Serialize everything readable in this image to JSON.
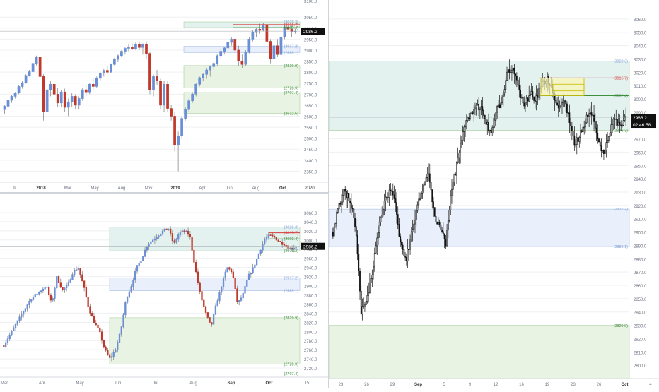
{
  "colors": {
    "up": "#6a8fd6",
    "down": "#c0392b",
    "candle_dark": "#111111",
    "zone_green": "#e8f3e4",
    "zone_green_border": "#a9cf9c",
    "zone_blue": "#e9f0fb",
    "zone_blue_border": "#a7bde6",
    "zone_teal": "#e3f1ef",
    "zone_yellow": "#fbf7b3",
    "zone_yellow_border": "#c9b800",
    "red_line": "#d63b3b",
    "green_line": "#3e8e3e",
    "grid": "#eef0f3",
    "axis_text": "#6b7280"
  },
  "price_tag": "2986.2",
  "countdown": "02:46:58",
  "chart_data": [
    {
      "type": "candlestick",
      "panel": "top-left",
      "timeframe": "weekly",
      "ylim": [
        2300,
        3070
      ],
      "x_tick_labels": [
        "9",
        "2018",
        "Mar",
        "May",
        "Aug",
        "Nov",
        "2019",
        "Apr",
        "Jun",
        "Aug",
        "Oct",
        "2020"
      ],
      "y_tick_labels": [
        "3050.0",
        "3000.0",
        "2950.0",
        "2900.0",
        "2850.0",
        "2800.0",
        "2750.0",
        "2700.0",
        "2650.0",
        "2600.0",
        "2550.0",
        "2500.0",
        "2450.0",
        "2400.0",
        "2350.0"
      ],
      "y_ticks": [
        3050,
        3000,
        2950,
        2900,
        2850,
        2800,
        2750,
        2700,
        2650,
        2600,
        2550,
        2500,
        2450,
        2400,
        2350
      ],
      "extra_top_tick": "3100.0",
      "level_labels": [
        {
          "label": "3028.3)",
          "value": 3028.3,
          "color": "blue"
        },
        {
          "label": "3015.7)",
          "value": 3015.7,
          "color": "red"
        },
        {
          "label": "3002.4)",
          "value": 3002.4,
          "color": "green"
        },
        {
          "label": "2917.2)",
          "value": 2917.2,
          "color": "blue"
        },
        {
          "label": "2889.1)",
          "value": 2889.1,
          "color": "blue"
        },
        {
          "label": "2829.9)",
          "value": 2829.9,
          "color": "green"
        },
        {
          "label": "2728.9)",
          "value": 2728.9,
          "color": "green"
        },
        {
          "label": "2707.4)",
          "value": 2707.4,
          "color": "green"
        },
        {
          "label": "2612.5)",
          "value": 2612.5,
          "color": "green"
        }
      ],
      "zones": [
        {
          "from": 3002.4,
          "to": 3028.3,
          "kind": "teal"
        },
        {
          "from": 2889.1,
          "to": 2917.2,
          "kind": "blue"
        },
        {
          "from": 2728.9,
          "to": 2829.9,
          "kind": "green"
        },
        {
          "from": 2612.5,
          "to": 2707.4,
          "kind": "green"
        }
      ],
      "series": [
        {
          "o": 2630,
          "h": 2650,
          "l": 2610,
          "c": 2645
        },
        {
          "o": 2645,
          "h": 2680,
          "l": 2640,
          "c": 2672
        },
        {
          "o": 2672,
          "h": 2695,
          "l": 2660,
          "c": 2690
        },
        {
          "o": 2690,
          "h": 2710,
          "l": 2680,
          "c": 2705
        },
        {
          "o": 2705,
          "h": 2740,
          "l": 2700,
          "c": 2735
        },
        {
          "o": 2735,
          "h": 2760,
          "l": 2725,
          "c": 2752
        },
        {
          "o": 2752,
          "h": 2790,
          "l": 2748,
          "c": 2785
        },
        {
          "o": 2785,
          "h": 2810,
          "l": 2780,
          "c": 2802
        },
        {
          "o": 2802,
          "h": 2845,
          "l": 2795,
          "c": 2840
        },
        {
          "o": 2840,
          "h": 2875,
          "l": 2830,
          "c": 2868
        },
        {
          "o": 2868,
          "h": 2875,
          "l": 2760,
          "c": 2780
        },
        {
          "o": 2780,
          "h": 2790,
          "l": 2580,
          "c": 2620
        },
        {
          "o": 2620,
          "h": 2730,
          "l": 2600,
          "c": 2720
        },
        {
          "o": 2720,
          "h": 2760,
          "l": 2690,
          "c": 2745
        },
        {
          "o": 2745,
          "h": 2770,
          "l": 2680,
          "c": 2700
        },
        {
          "o": 2700,
          "h": 2730,
          "l": 2640,
          "c": 2660
        },
        {
          "o": 2660,
          "h": 2720,
          "l": 2640,
          "c": 2710
        },
        {
          "o": 2710,
          "h": 2725,
          "l": 2620,
          "c": 2640
        },
        {
          "o": 2640,
          "h": 2680,
          "l": 2600,
          "c": 2665
        },
        {
          "o": 2665,
          "h": 2705,
          "l": 2640,
          "c": 2690
        },
        {
          "o": 2690,
          "h": 2700,
          "l": 2630,
          "c": 2650
        },
        {
          "o": 2650,
          "h": 2690,
          "l": 2630,
          "c": 2680
        },
        {
          "o": 2680,
          "h": 2730,
          "l": 2670,
          "c": 2720
        },
        {
          "o": 2720,
          "h": 2740,
          "l": 2690,
          "c": 2710
        },
        {
          "o": 2710,
          "h": 2750,
          "l": 2700,
          "c": 2745
        },
        {
          "o": 2745,
          "h": 2770,
          "l": 2720,
          "c": 2735
        },
        {
          "o": 2735,
          "h": 2780,
          "l": 2730,
          "c": 2772
        },
        {
          "o": 2772,
          "h": 2800,
          "l": 2760,
          "c": 2795
        },
        {
          "o": 2795,
          "h": 2815,
          "l": 2780,
          "c": 2808
        },
        {
          "o": 2808,
          "h": 2830,
          "l": 2790,
          "c": 2800
        },
        {
          "o": 2800,
          "h": 2840,
          "l": 2795,
          "c": 2835
        },
        {
          "o": 2835,
          "h": 2865,
          "l": 2830,
          "c": 2858
        },
        {
          "o": 2858,
          "h": 2880,
          "l": 2845,
          "c": 2875
        },
        {
          "o": 2875,
          "h": 2900,
          "l": 2870,
          "c": 2895
        },
        {
          "o": 2895,
          "h": 2915,
          "l": 2880,
          "c": 2908
        },
        {
          "o": 2908,
          "h": 2925,
          "l": 2895,
          "c": 2915
        },
        {
          "o": 2915,
          "h": 2930,
          "l": 2900,
          "c": 2905
        },
        {
          "o": 2905,
          "h": 2935,
          "l": 2900,
          "c": 2928
        },
        {
          "o": 2928,
          "h": 2940,
          "l": 2900,
          "c": 2912
        },
        {
          "o": 2912,
          "h": 2930,
          "l": 2880,
          "c": 2925
        },
        {
          "o": 2925,
          "h": 2940,
          "l": 2860,
          "c": 2885
        },
        {
          "o": 2885,
          "h": 2890,
          "l": 2700,
          "c": 2720
        },
        {
          "o": 2720,
          "h": 2790,
          "l": 2690,
          "c": 2780
        },
        {
          "o": 2780,
          "h": 2810,
          "l": 2740,
          "c": 2760
        },
        {
          "o": 2760,
          "h": 2770,
          "l": 2630,
          "c": 2650
        },
        {
          "o": 2650,
          "h": 2760,
          "l": 2620,
          "c": 2745
        },
        {
          "o": 2745,
          "h": 2760,
          "l": 2620,
          "c": 2635
        },
        {
          "o": 2635,
          "h": 2650,
          "l": 2580,
          "c": 2600
        },
        {
          "o": 2600,
          "h": 2620,
          "l": 2440,
          "c": 2470
        },
        {
          "o": 2470,
          "h": 2530,
          "l": 2350,
          "c": 2510
        },
        {
          "o": 2510,
          "h": 2600,
          "l": 2500,
          "c": 2590
        },
        {
          "o": 2590,
          "h": 2640,
          "l": 2580,
          "c": 2630
        },
        {
          "o": 2630,
          "h": 2680,
          "l": 2620,
          "c": 2670
        },
        {
          "o": 2670,
          "h": 2710,
          "l": 2660,
          "c": 2700
        },
        {
          "o": 2700,
          "h": 2750,
          "l": 2690,
          "c": 2745
        },
        {
          "o": 2745,
          "h": 2780,
          "l": 2735,
          "c": 2775
        },
        {
          "o": 2775,
          "h": 2795,
          "l": 2760,
          "c": 2790
        },
        {
          "o": 2790,
          "h": 2820,
          "l": 2770,
          "c": 2810
        },
        {
          "o": 2810,
          "h": 2830,
          "l": 2780,
          "c": 2825
        },
        {
          "o": 2825,
          "h": 2850,
          "l": 2810,
          "c": 2840
        },
        {
          "o": 2840,
          "h": 2880,
          "l": 2830,
          "c": 2875
        },
        {
          "o": 2875,
          "h": 2905,
          "l": 2860,
          "c": 2895
        },
        {
          "o": 2895,
          "h": 2915,
          "l": 2880,
          "c": 2910
        },
        {
          "o": 2910,
          "h": 2940,
          "l": 2905,
          "c": 2935
        },
        {
          "o": 2935,
          "h": 2960,
          "l": 2920,
          "c": 2950
        },
        {
          "o": 2950,
          "h": 2955,
          "l": 2880,
          "c": 2900
        },
        {
          "o": 2900,
          "h": 2920,
          "l": 2830,
          "c": 2850
        },
        {
          "o": 2850,
          "h": 2880,
          "l": 2820,
          "c": 2835
        },
        {
          "o": 2835,
          "h": 2900,
          "l": 2830,
          "c": 2890
        },
        {
          "o": 2890,
          "h": 2960,
          "l": 2885,
          "c": 2950
        },
        {
          "o": 2950,
          "h": 2990,
          "l": 2940,
          "c": 2980
        },
        {
          "o": 2980,
          "h": 3000,
          "l": 2960,
          "c": 2995
        },
        {
          "o": 2995,
          "h": 3020,
          "l": 2975,
          "c": 2990
        },
        {
          "o": 2990,
          "h": 3025,
          "l": 2985,
          "c": 3015
        },
        {
          "o": 3015,
          "h": 3028,
          "l": 2930,
          "c": 2940
        },
        {
          "o": 2940,
          "h": 2950,
          "l": 2840,
          "c": 2860
        },
        {
          "o": 2860,
          "h": 2945,
          "l": 2830,
          "c": 2920
        },
        {
          "o": 2920,
          "h": 2950,
          "l": 2870,
          "c": 2880
        },
        {
          "o": 2880,
          "h": 2970,
          "l": 2870,
          "c": 2960
        },
        {
          "o": 2960,
          "h": 3015,
          "l": 2950,
          "c": 3005
        },
        {
          "o": 3005,
          "h": 3020,
          "l": 2985,
          "c": 2995
        },
        {
          "o": 2995,
          "h": 3010,
          "l": 2960,
          "c": 2985
        },
        {
          "o": 2985,
          "h": 2998,
          "l": 2975,
          "c": 2986
        }
      ]
    },
    {
      "type": "candlestick",
      "panel": "bottom-left",
      "timeframe": "daily",
      "ylim": [
        2700,
        3080
      ],
      "x_tick_labels": [
        "Mar",
        "Apr",
        "May",
        "Jun",
        "Jul",
        "Aug",
        "Sep",
        "Oct",
        "15"
      ],
      "y_tick_labels": [
        "3060.0",
        "3040.0",
        "3020.0",
        "3000.0",
        "2980.0",
        "2960.0",
        "2940.0",
        "2920.0",
        "2900.0",
        "2880.0",
        "2860.0",
        "2840.0",
        "2820.0",
        "2800.0",
        "2780.0",
        "2760.0",
        "2740.0",
        "2720.0"
      ],
      "y_ticks": [
        3060,
        3040,
        3020,
        3000,
        2980,
        2960,
        2940,
        2920,
        2900,
        2880,
        2860,
        2840,
        2820,
        2800,
        2780,
        2760,
        2740,
        2720
      ],
      "level_labels": [
        {
          "label": "3028.3)",
          "value": 3028.3,
          "color": "blue"
        },
        {
          "label": "3015.7)",
          "value": 3015.7,
          "color": "red"
        },
        {
          "label": "3002.4)",
          "value": 3002.4,
          "color": "green"
        },
        {
          "label": "2976.3)",
          "value": 2976.3,
          "color": "green"
        },
        {
          "label": "2917.2)",
          "value": 2917.2,
          "color": "blue"
        },
        {
          "label": "2889.1)",
          "value": 2889.1,
          "color": "blue"
        },
        {
          "label": "2829.9)",
          "value": 2829.9,
          "color": "green"
        },
        {
          "label": "2728.9)",
          "value": 2728.9,
          "color": "green"
        },
        {
          "label": "2707.4)",
          "value": 2707.4,
          "color": "green"
        }
      ],
      "zones": [
        {
          "from": 2976.3,
          "to": 3028.3,
          "kind": "teal"
        },
        {
          "from": 2889.1,
          "to": 2917.2,
          "kind": "blue"
        },
        {
          "from": 2728.9,
          "to": 2829.9,
          "kind": "green"
        }
      ]
    },
    {
      "type": "candlestick",
      "panel": "right",
      "timeframe": "hourly",
      "ylim": [
        2790,
        3070
      ],
      "x_tick_labels": [
        "23",
        "26",
        "29",
        "Sep",
        "5",
        "9",
        "12",
        "16",
        "19",
        "23",
        "26",
        "Oct",
        "4"
      ],
      "y_tick_labels": [
        "3060.0",
        "3050.0",
        "3040.0",
        "3030.0",
        "3020.0",
        "3010.0",
        "3000.0",
        "2990.0",
        "2980.0",
        "2970.0",
        "2960.0",
        "2950.0",
        "2940.0",
        "2930.0",
        "2920.0",
        "2910.0",
        "2900.0",
        "2890.0",
        "2880.0",
        "2870.0",
        "2860.0",
        "2850.0",
        "2840.0",
        "2830.0",
        "2820.0",
        "2810.0",
        "2800.0"
      ],
      "y_ticks": [
        3060,
        3050,
        3040,
        3030,
        3020,
        3010,
        3000,
        2990,
        2980,
        2970,
        2960,
        2950,
        2940,
        2930,
        2920,
        2910,
        2900,
        2890,
        2880,
        2870,
        2860,
        2850,
        2840,
        2830,
        2820,
        2810,
        2800
      ],
      "level_labels": [
        {
          "label": "3028.3)",
          "value": 3028.3,
          "color": "blue"
        },
        {
          "label": "3015.7)",
          "value": 3015.7,
          "color": "red"
        },
        {
          "label": "3002.4)",
          "value": 3002.4,
          "color": "green"
        },
        {
          "label": "2976.3)",
          "value": 2976.3,
          "color": "green"
        },
        {
          "label": "2917.2)",
          "value": 2917.2,
          "color": "blue"
        },
        {
          "label": "2889.1)",
          "value": 2889.1,
          "color": "blue"
        },
        {
          "label": "2829.9)",
          "value": 2829.9,
          "color": "green"
        }
      ],
      "zones": [
        {
          "from": 2976.3,
          "to": 3028.3,
          "kind": "teal"
        },
        {
          "from": 2889.1,
          "to": 2917.2,
          "kind": "blue"
        },
        {
          "from": 2790,
          "to": 2829.9,
          "kind": "green"
        }
      ]
    }
  ]
}
